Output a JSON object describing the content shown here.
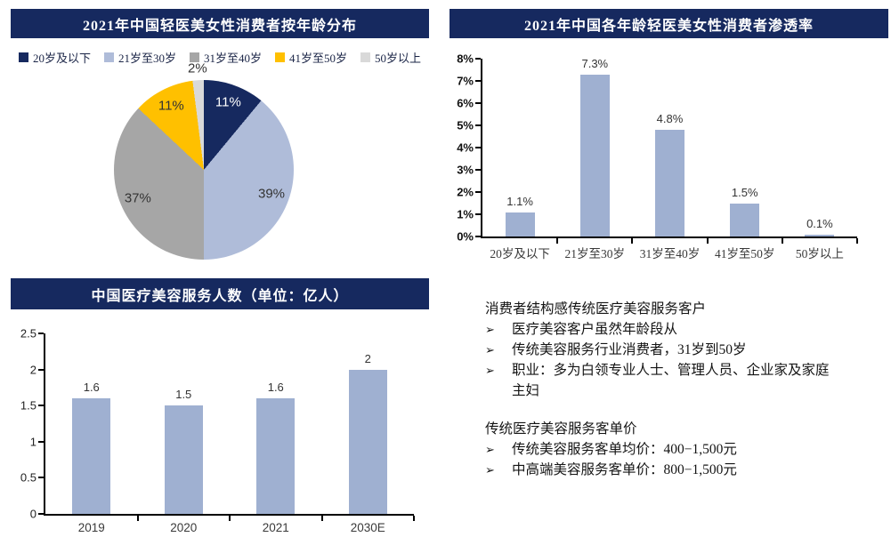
{
  "colors": {
    "navy": "#16295f",
    "pie_blue": "#afbcd9",
    "bar_blue": "#9fb0d1",
    "gray": "#a6a6a6",
    "yellow": "#ffc000",
    "light_gray": "#d9d9d9",
    "title_text": "#ffffff",
    "label_text": "#333333"
  },
  "chart_data": [
    {
      "type": "pie",
      "title": "2021年中国轻医美女性消费者按年龄分布",
      "categories": [
        "20岁及以下",
        "21岁至30岁",
        "31岁至40岁",
        "41岁至50岁",
        "50岁以上"
      ],
      "values": [
        11,
        39,
        37,
        11,
        2
      ],
      "labels": [
        "11%",
        "39%",
        "37%",
        "11%",
        "2%"
      ],
      "colors": [
        "#16295f",
        "#afbcd9",
        "#a6a6a6",
        "#ffc000",
        "#d9d9d9"
      ],
      "legend_position": "top",
      "start_angle_deg": 0,
      "direction": "clockwise"
    },
    {
      "type": "bar",
      "title": "2021年中国各年龄轻医美女性消费者渗透率",
      "categories": [
        "20岁及以下",
        "21岁至30岁",
        "31岁至40岁",
        "41岁至50岁",
        "50岁以上"
      ],
      "values": [
        1.1,
        7.3,
        4.8,
        1.5,
        0.1
      ],
      "labels": [
        "1.1%",
        "7.3%",
        "4.8%",
        "1.5%",
        "0.1%"
      ],
      "xlabel": "",
      "ylabel": "",
      "ylim": [
        0,
        8
      ],
      "ytick_labels": [
        "0%",
        "1%",
        "2%",
        "3%",
        "4%",
        "5%",
        "6%",
        "7%",
        "8%"
      ],
      "grid": false,
      "bar_color": "#9fb0d1",
      "cjk_categories": true,
      "bold_yticks": true
    },
    {
      "type": "bar",
      "title": "中国医疗美容服务人数（单位：亿人）",
      "categories": [
        "2019",
        "2020",
        "2021",
        "2030E"
      ],
      "values": [
        1.6,
        1.5,
        1.6,
        2
      ],
      "labels": [
        "1.6",
        "1.5",
        "1.6",
        "2"
      ],
      "xlabel": "",
      "ylabel": "",
      "ylim": [
        0,
        2.5
      ],
      "ytick_labels": [
        "0",
        "0.5",
        "1",
        "1.5",
        "2",
        "2.5"
      ],
      "grid": false,
      "bar_color": "#9fb0d1",
      "cjk_categories": false,
      "bold_yticks": false
    }
  ],
  "notes": {
    "bullet_char": "➢",
    "section1": {
      "heading": "消费者结构感传统医疗美容服务客户",
      "bullets": [
        "医疗美容客户虽然年龄段从",
        "传统美容服务行业消费者，31岁到50岁",
        "职业：多为白领专业人士、管理人员、企业家及家庭主妇"
      ]
    },
    "section2": {
      "heading": "传统医疗美容服务客单价",
      "bullets": [
        "传统美容服务客单均价：400−1,500元",
        "中高端美容服务客单价：800−1,500元"
      ]
    }
  }
}
